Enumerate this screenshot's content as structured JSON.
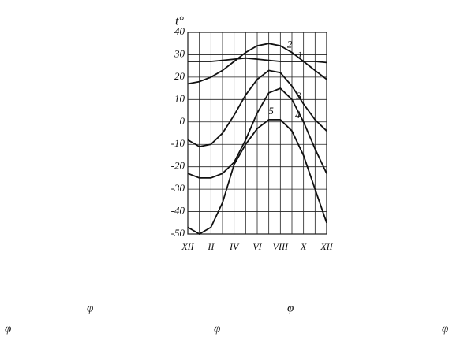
{
  "chart_data": {
    "type": "line",
    "y_label": "t°",
    "categories": [
      "XII",
      null,
      "II",
      null,
      "IV",
      null,
      "VI",
      null,
      "VIII",
      null,
      "X",
      null,
      "XII"
    ],
    "series": [
      {
        "name": "1",
        "color": "#111111",
        "values": [
          27,
          27,
          27,
          27.5,
          28,
          28.5,
          28,
          27.5,
          27,
          27,
          27,
          27,
          26.5
        ]
      },
      {
        "name": "2",
        "color": "#111111",
        "values": [
          17,
          18,
          20,
          23,
          27,
          31,
          34,
          35,
          34,
          31,
          27,
          23,
          19
        ]
      },
      {
        "name": "3",
        "color": "#111111",
        "values": [
          -8,
          -11,
          -10,
          -5,
          3,
          12,
          19,
          23,
          22,
          16,
          8,
          1,
          -4
        ]
      },
      {
        "name": "4",
        "color": "#111111",
        "values": [
          -23,
          -25,
          -25,
          -23,
          -18,
          -8,
          4,
          13,
          15,
          10,
          0,
          -12,
          -23
        ]
      },
      {
        "name": "5",
        "color": "#111111",
        "values": [
          -47,
          -50,
          -47,
          -36,
          -19,
          -10,
          -3,
          1,
          1,
          -4,
          -15,
          -30,
          -45
        ]
      }
    ],
    "ylim": [
      -50,
      40
    ],
    "yticks": [
      40,
      30,
      20,
      10,
      0,
      -10,
      -20,
      -30,
      -40,
      -50
    ],
    "grid": true,
    "footnotes": [
      "φ",
      "φ",
      "φ",
      "φ",
      "φ"
    ]
  }
}
